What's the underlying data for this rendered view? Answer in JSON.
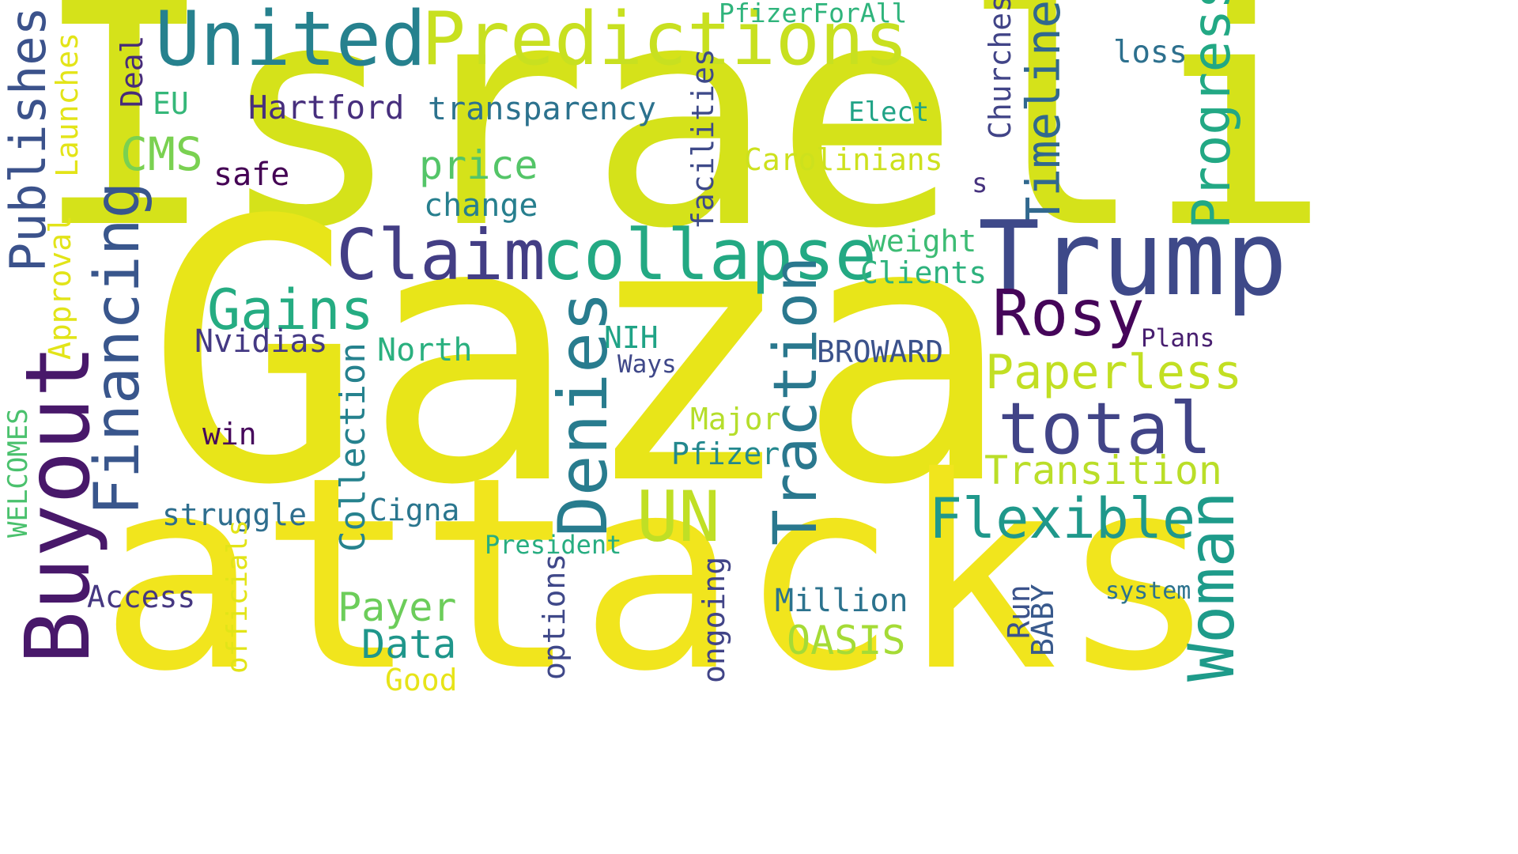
{
  "cloud": {
    "words": [
      {
        "text": "Israeli",
        "color": "#d5e21a"
      },
      {
        "text": "Gaza",
        "color": "#e8e519"
      },
      {
        "text": "attacks",
        "color": "#f1e51d"
      },
      {
        "text": "United",
        "color": "#26818e"
      },
      {
        "text": "Predictions",
        "color": "#c8e020"
      },
      {
        "text": "PfizerForAll",
        "color": "#2fb47c"
      },
      {
        "text": "loss",
        "color": "#2d708e"
      },
      {
        "text": "Churches",
        "color": "#414487"
      },
      {
        "text": "Timeline",
        "color": "#31688e"
      },
      {
        "text": "Progress",
        "color": "#22a884"
      },
      {
        "text": "Publishes",
        "color": "#3b528b"
      },
      {
        "text": "Launches",
        "color": "#e3e418"
      },
      {
        "text": "Deal",
        "color": "#472c7a"
      },
      {
        "text": "EU",
        "color": "#35b779"
      },
      {
        "text": "Hartford",
        "color": "#472f7d"
      },
      {
        "text": "transparency",
        "color": "#2c728e"
      },
      {
        "text": "Elect",
        "color": "#20a386"
      },
      {
        "text": "CMS",
        "color": "#7ad151"
      },
      {
        "text": "facilities",
        "color": "#3e4a89"
      },
      {
        "text": "Carolinians",
        "color": "#cde11d"
      },
      {
        "text": "safe",
        "color": "#440154"
      },
      {
        "text": "price",
        "color": "#54c568"
      },
      {
        "text": "s",
        "color": "#46327e"
      },
      {
        "text": "change",
        "color": "#277f8e"
      },
      {
        "text": "Trump",
        "color": "#3e4989"
      },
      {
        "text": "Claim",
        "color": "#433e85"
      },
      {
        "text": "collapse",
        "color": "#23a983"
      },
      {
        "text": "weight",
        "color": "#3dbc74"
      },
      {
        "text": "Clients",
        "color": "#2db27d"
      },
      {
        "text": "Financing",
        "color": "#39568c"
      },
      {
        "text": "Approval",
        "color": "#e2e418"
      },
      {
        "text": "Buyout",
        "color": "#48186a"
      },
      {
        "text": "Gains",
        "color": "#25ac82"
      },
      {
        "text": "Rosy",
        "color": "#450559"
      },
      {
        "text": "Denies",
        "color": "#287c8e"
      },
      {
        "text": "Traction",
        "color": "#2a788e"
      },
      {
        "text": "Nvidias",
        "color": "#443983"
      },
      {
        "text": "NIH",
        "color": "#20a386"
      },
      {
        "text": "Plans",
        "color": "#481f70"
      },
      {
        "text": "North",
        "color": "#2ab07f"
      },
      {
        "text": "BROWARD",
        "color": "#3b528b"
      },
      {
        "text": "Ways",
        "color": "#3f4889"
      },
      {
        "text": "Paperless",
        "color": "#c2df23"
      },
      {
        "text": "Collection",
        "color": "#26828e"
      },
      {
        "text": "total",
        "color": "#414487"
      },
      {
        "text": "Major",
        "color": "#b5de2b"
      },
      {
        "text": "win",
        "color": "#46085c"
      },
      {
        "text": "WELCOMES",
        "color": "#4ac16d"
      },
      {
        "text": "Pfizer",
        "color": "#23888e"
      },
      {
        "text": "Transition",
        "color": "#bade28"
      },
      {
        "text": "UN",
        "color": "#c0df25"
      },
      {
        "text": "Flexible",
        "color": "#1f988b"
      },
      {
        "text": "Woman",
        "color": "#1e9b8a"
      },
      {
        "text": "struggle",
        "color": "#2e6e8e"
      },
      {
        "text": "Cigna",
        "color": "#2a768e"
      },
      {
        "text": "President",
        "color": "#27ad81"
      },
      {
        "text": "officials",
        "color": "#e2e418"
      },
      {
        "text": "Access",
        "color": "#453781"
      },
      {
        "text": "options",
        "color": "#3f4889"
      },
      {
        "text": "ongoing",
        "color": "#414487"
      },
      {
        "text": "system",
        "color": "#2c728e"
      },
      {
        "text": "Payer",
        "color": "#6ccd5a"
      },
      {
        "text": "Million",
        "color": "#2c738e"
      },
      {
        "text": "Run",
        "color": "#3b528b"
      },
      {
        "text": "BABY",
        "color": "#38598c"
      },
      {
        "text": "Data",
        "color": "#1f968b"
      },
      {
        "text": "OASIS",
        "color": "#a5db36"
      },
      {
        "text": "Good",
        "color": "#e7e419"
      }
    ]
  }
}
